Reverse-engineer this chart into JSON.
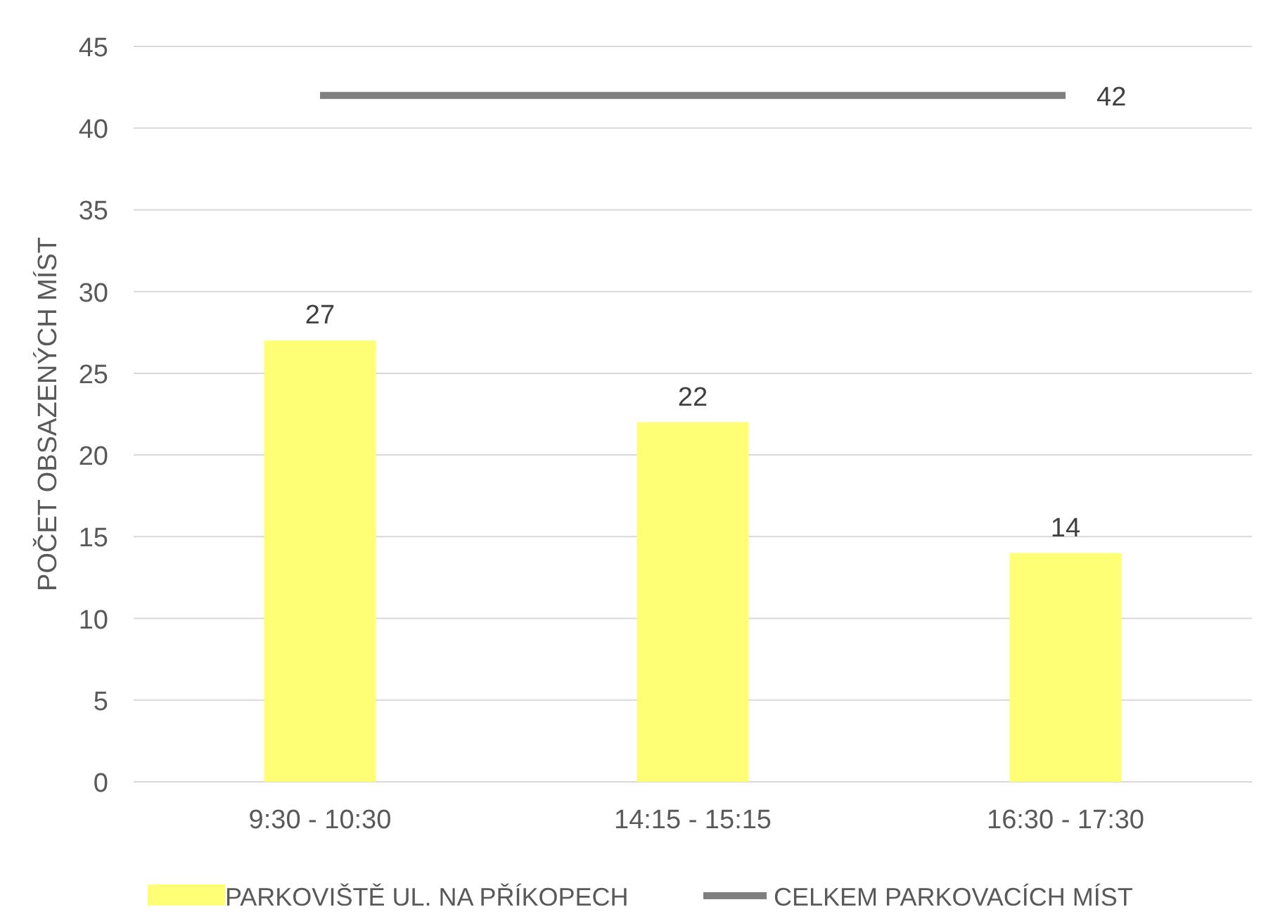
{
  "chart_data": {
    "type": "bar",
    "ylabel": "POČET OBSAZENÝCH MÍST",
    "categories": [
      "9:30 - 10:30",
      "14:15 - 15:15",
      "16:30 - 17:30"
    ],
    "ylim": [
      0,
      45
    ],
    "yticks": [
      0,
      5,
      10,
      15,
      20,
      25,
      30,
      35,
      40,
      45
    ],
    "grid": "y",
    "legend": "bottom",
    "series": [
      {
        "name": "PARKOVIŠTĚ UL. NA PŘÍKOPECH",
        "color": "#ffff75",
        "values": [
          27,
          22,
          14
        ],
        "value_labels": [
          "27",
          "22",
          "14"
        ]
      },
      {
        "name": "CELKEM PARKOVACÍCH MÍST",
        "type": "line",
        "color": "#7f7f7f",
        "values": [
          42,
          42,
          42
        ],
        "value_labels": [
          null,
          null,
          "42"
        ],
        "marker": "none"
      }
    ]
  }
}
